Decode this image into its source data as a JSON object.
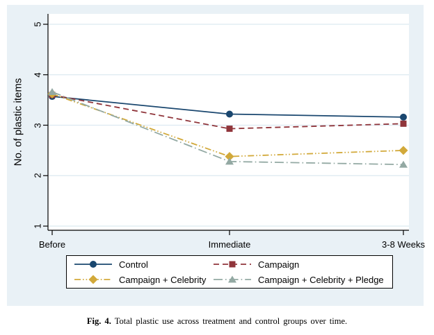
{
  "caption": {
    "label": "Fig. 4.",
    "text": " Total plastic use across treatment and control groups over time."
  },
  "chart_data": {
    "type": "line",
    "title": "",
    "xlabel": "",
    "ylabel": "No. of plastic items",
    "categories": [
      "Before",
      "Immediate",
      "3-8 Weeks"
    ],
    "y_ticks": [
      1,
      2,
      3,
      4,
      5
    ],
    "ylim": [
      0.9,
      5.2
    ],
    "grid": true,
    "legend_position": "bottom",
    "background": "#e9f1f6",
    "plot_background": "#ffffff",
    "gridline_color": "#dce9f1",
    "axis_color": "#000000",
    "series": [
      {
        "name": "Control",
        "values": [
          3.57,
          3.22,
          3.16
        ],
        "color": "#1a476f",
        "marker": "circle",
        "dash": "solid"
      },
      {
        "name": "Campaign",
        "values": [
          3.6,
          2.93,
          3.03
        ],
        "color": "#90353b",
        "marker": "square",
        "dash": "dash"
      },
      {
        "name": "Campaign + Celebrity",
        "values": [
          3.62,
          2.38,
          2.5
        ],
        "color": "#d2a93a",
        "marker": "diamond",
        "dash": "dash-dot-dot"
      },
      {
        "name": "Campaign + Celebrity + Pledge",
        "values": [
          3.66,
          2.28,
          2.22
        ],
        "color": "#93a9a3",
        "marker": "triangle",
        "dash": "long-dash-dot"
      }
    ]
  }
}
